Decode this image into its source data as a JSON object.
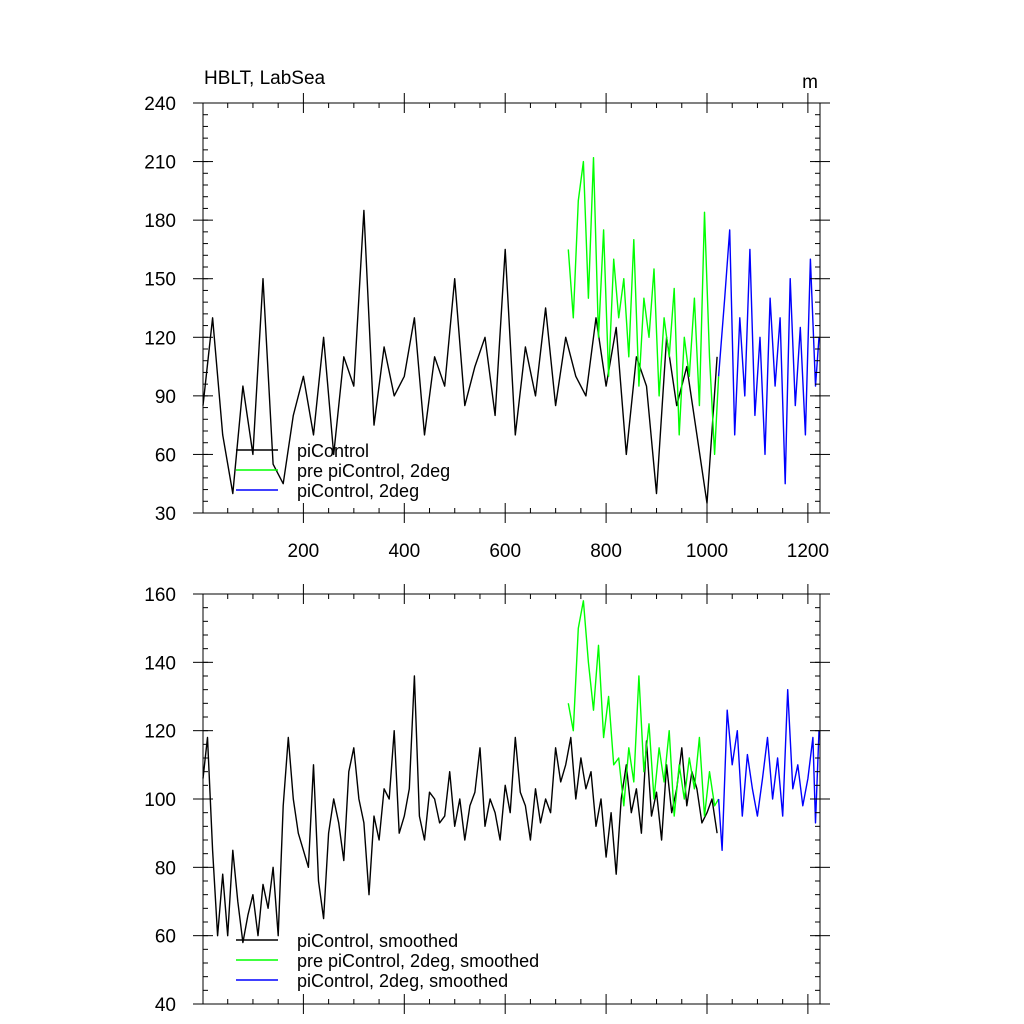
{
  "chart_data": [
    {
      "type": "line",
      "title": "HBLT, LabSea",
      "units": "m",
      "xlim": [
        1,
        1224
      ],
      "ylim": [
        30,
        240
      ],
      "xticks": [
        200,
        400,
        600,
        800,
        1000,
        1200
      ],
      "xtick_labels": [
        "200",
        "400",
        "600",
        "800",
        "1000",
        "1200"
      ],
      "yticks": [
        30,
        60,
        90,
        120,
        150,
        180,
        210,
        240
      ],
      "ytick_labels": [
        "30",
        "60",
        "90",
        "120",
        "150",
        "180",
        "210",
        "240"
      ],
      "grid": false,
      "legend_position": "bottom-left",
      "series": [
        {
          "name": "piControl",
          "color": "#000000",
          "x": [
            1,
            20,
            40,
            60,
            80,
            100,
            120,
            140,
            160,
            180,
            200,
            220,
            240,
            260,
            280,
            300,
            320,
            340,
            360,
            380,
            400,
            420,
            440,
            460,
            480,
            500,
            520,
            540,
            560,
            580,
            600,
            620,
            640,
            660,
            680,
            700,
            720,
            740,
            760,
            780,
            800,
            820,
            840,
            860,
            880,
            900,
            920,
            940,
            960,
            980,
            1000,
            1020
          ],
          "values": [
            85,
            130,
            70,
            40,
            95,
            60,
            150,
            55,
            45,
            80,
            100,
            70,
            120,
            60,
            110,
            95,
            185,
            75,
            115,
            90,
            100,
            130,
            70,
            110,
            95,
            150,
            85,
            105,
            120,
            80,
            165,
            70,
            115,
            90,
            135,
            85,
            120,
            100,
            90,
            130,
            95,
            125,
            60,
            110,
            95,
            40,
            120,
            85,
            105,
            70,
            35,
            110
          ]
        },
        {
          "name": "pre piControl, 2deg",
          "color": "#00ff00",
          "x": [
            725,
            735,
            745,
            755,
            765,
            775,
            785,
            795,
            805,
            815,
            825,
            835,
            845,
            855,
            865,
            875,
            885,
            895,
            905,
            915,
            925,
            935,
            945,
            955,
            965,
            975,
            985,
            995,
            1005,
            1015,
            1023
          ],
          "values": [
            165,
            130,
            190,
            210,
            140,
            212,
            120,
            175,
            100,
            160,
            130,
            150,
            110,
            170,
            95,
            140,
            120,
            155,
            90,
            130,
            110,
            145,
            70,
            120,
            100,
            140,
            85,
            184,
            110,
            60,
            100
          ]
        },
        {
          "name": "piControl, 2deg",
          "color": "#0000ff",
          "x": [
            1023,
            1035,
            1045,
            1055,
            1065,
            1075,
            1085,
            1095,
            1105,
            1115,
            1125,
            1135,
            1145,
            1155,
            1165,
            1175,
            1185,
            1195,
            1205,
            1215,
            1222
          ],
          "values": [
            100,
            140,
            175,
            70,
            130,
            90,
            165,
            80,
            120,
            60,
            140,
            95,
            130,
            45,
            150,
            85,
            125,
            70,
            160,
            95,
            120
          ]
        }
      ]
    },
    {
      "type": "line",
      "xlim": [
        1,
        1224
      ],
      "ylim": [
        40,
        160
      ],
      "yticks": [
        40,
        60,
        80,
        100,
        120,
        140,
        160
      ],
      "ytick_labels": [
        "40",
        "60",
        "80",
        "100",
        "120",
        "140",
        "160"
      ],
      "grid": false,
      "legend_position": "bottom-left",
      "series": [
        {
          "name": "piControl, smoothed",
          "color": "#000000",
          "x": [
            1,
            10,
            20,
            30,
            40,
            50,
            60,
            70,
            80,
            90,
            100,
            110,
            120,
            130,
            140,
            150,
            160,
            170,
            180,
            190,
            200,
            210,
            220,
            230,
            240,
            250,
            260,
            270,
            280,
            290,
            300,
            310,
            320,
            330,
            340,
            350,
            360,
            370,
            380,
            390,
            400,
            410,
            420,
            430,
            440,
            450,
            460,
            470,
            480,
            490,
            500,
            510,
            520,
            530,
            540,
            550,
            560,
            570,
            580,
            590,
            600,
            610,
            620,
            630,
            640,
            650,
            660,
            670,
            680,
            690,
            700,
            710,
            720,
            730,
            740,
            750,
            760,
            770,
            780,
            790,
            800,
            810,
            820,
            830,
            840,
            850,
            860,
            870,
            880,
            890,
            900,
            910,
            920,
            930,
            940,
            950,
            960,
            970,
            980,
            990,
            1000,
            1010,
            1020
          ],
          "values": [
            106,
            118,
            85,
            60,
            78,
            60,
            85,
            70,
            58,
            66,
            72,
            60,
            75,
            68,
            80,
            60,
            98,
            118,
            100,
            90,
            85,
            80,
            110,
            76,
            65,
            90,
            100,
            93,
            82,
            108,
            115,
            100,
            93,
            72,
            95,
            88,
            103,
            100,
            120,
            90,
            95,
            103,
            136,
            95,
            88,
            102,
            100,
            93,
            95,
            108,
            92,
            100,
            88,
            98,
            102,
            115,
            92,
            100,
            96,
            88,
            104,
            96,
            118,
            102,
            98,
            88,
            103,
            93,
            100,
            96,
            115,
            105,
            110,
            118,
            100,
            112,
            103,
            108,
            92,
            100,
            83,
            96,
            78,
            100,
            110,
            96,
            103,
            90,
            117,
            95,
            102,
            88,
            110,
            96,
            103,
            115,
            98,
            108,
            103,
            93,
            96,
            100,
            90
          ]
        },
        {
          "name": "pre piControl, 2deg, smoothed",
          "color": "#00ff00",
          "x": [
            725,
            735,
            745,
            755,
            765,
            775,
            785,
            795,
            805,
            815,
            825,
            835,
            845,
            855,
            865,
            875,
            885,
            895,
            905,
            915,
            925,
            935,
            945,
            955,
            965,
            975,
            985,
            995,
            1005,
            1015,
            1023
          ],
          "values": [
            128,
            120,
            150,
            158,
            140,
            126,
            145,
            118,
            130,
            110,
            112,
            98,
            115,
            105,
            136,
            108,
            122,
            100,
            115,
            105,
            120,
            95,
            110,
            100,
            112,
            103,
            118,
            95,
            108,
            98,
            100
          ]
        },
        {
          "name": "piControl, 2deg, smoothed",
          "color": "#0000ff",
          "x": [
            1023,
            1030,
            1040,
            1050,
            1060,
            1070,
            1080,
            1090,
            1100,
            1110,
            1120,
            1130,
            1140,
            1150,
            1160,
            1170,
            1180,
            1190,
            1200,
            1210,
            1215,
            1222
          ],
          "values": [
            100,
            85,
            126,
            110,
            120,
            95,
            113,
            103,
            95,
            106,
            118,
            100,
            112,
            95,
            132,
            103,
            110,
            98,
            106,
            118,
            93,
            120
          ]
        }
      ]
    }
  ]
}
